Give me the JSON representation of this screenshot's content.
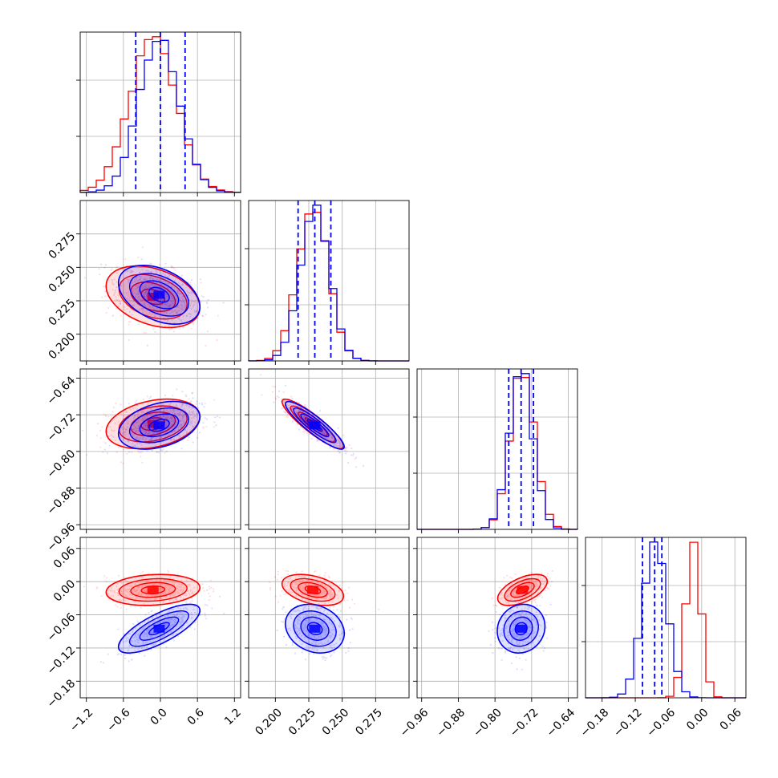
{
  "colors": {
    "a": "#ff0000",
    "b": "#0000ff",
    "grid": "#b0b0b0"
  },
  "chart_data": {
    "type": "corner",
    "dims": [
      {
        "range": [
          -1.3,
          1.3
        ],
        "ticks": [
          -1.2,
          -0.6,
          0.0,
          0.6,
          1.2
        ],
        "tick_labels": [
          "−1.2",
          "−0.6",
          "0.0",
          "0.6",
          "1.2"
        ],
        "red": {
          "mean": -0.12,
          "sd": 0.38
        },
        "blue": {
          "mean": -0.02,
          "sd": 0.33
        },
        "quantiles": [
          -0.4,
          0.0,
          0.4
        ]
      },
      {
        "range": [
          0.18,
          0.3
        ],
        "ticks": [
          0.2,
          0.225,
          0.25,
          0.275
        ],
        "tick_labels": [
          "0.200",
          "0.225",
          "0.250",
          "0.275"
        ],
        "red": {
          "mean": 0.228,
          "sd": 0.0115
        },
        "blue": {
          "mean": 0.2295,
          "sd": 0.011
        },
        "quantiles": [
          0.217,
          0.2295,
          0.2415
        ]
      },
      {
        "range": [
          -0.97,
          -0.62
        ],
        "ticks": [
          -0.96,
          -0.88,
          -0.8,
          -0.72,
          -0.64
        ],
        "tick_labels": [
          "−0.96",
          "−0.88",
          "−0.80",
          "−0.72",
          "−0.64"
        ],
        "red": {
          "mean": -0.74,
          "sd": 0.027
        },
        "blue": {
          "mean": -0.743,
          "sd": 0.026
        },
        "quantiles": [
          -0.77,
          -0.743,
          -0.716
        ]
      },
      {
        "range": [
          -0.21,
          0.08
        ],
        "ticks": [
          -0.18,
          -0.12,
          -0.06,
          0.0,
          0.06
        ],
        "tick_labels": [
          "−0.18",
          "−0.12",
          "−0.06",
          "0.00",
          "0.06"
        ],
        "red": {
          "mean": -0.015,
          "sd": 0.014
        },
        "blue": {
          "mean": -0.085,
          "sd": 0.022
        },
        "quantiles": [
          -0.107,
          -0.085,
          -0.072
        ]
      }
    ]
  }
}
